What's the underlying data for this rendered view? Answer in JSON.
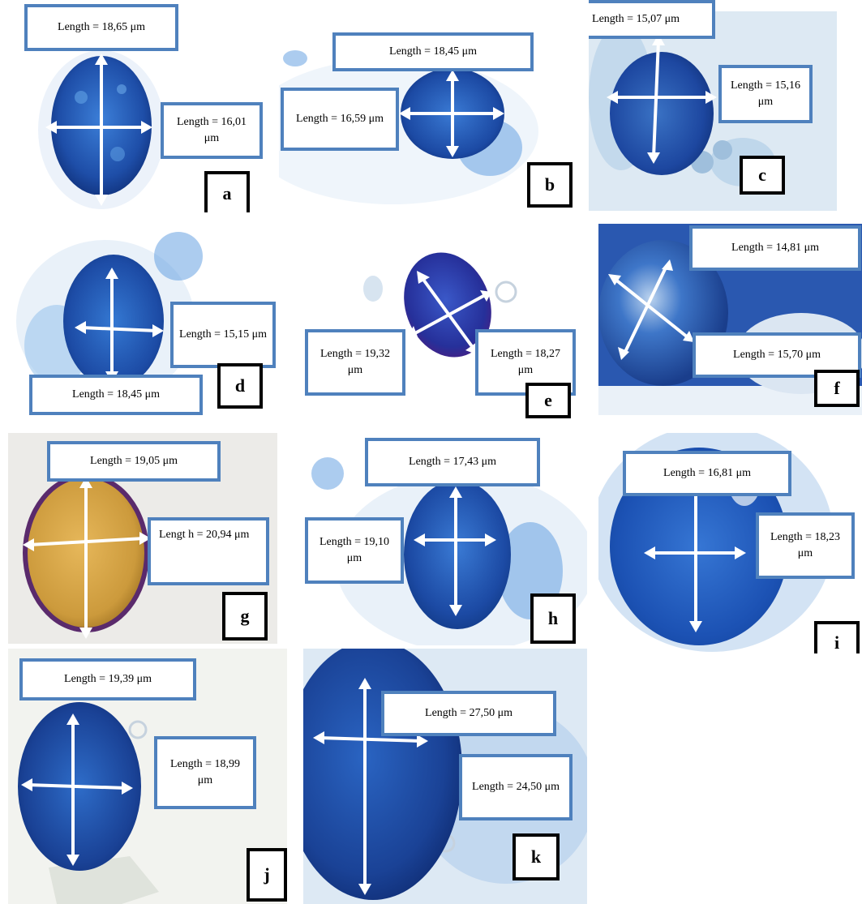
{
  "panels": [
    {
      "id": "a",
      "letter": "a",
      "measure_1": "Length = 18,65 μm",
      "measure_2": "Length = 16,01 μm"
    },
    {
      "id": "b",
      "letter": "b",
      "measure_1": "Length = 18,45 μm",
      "measure_2": "Length = 16,59 μm"
    },
    {
      "id": "c",
      "letter": "c",
      "measure_1": "Length = 15,07 μm",
      "measure_2": "Length = 15,16 μm"
    },
    {
      "id": "d",
      "letter": "d",
      "measure_1": "Length = 15,15 μm",
      "measure_2": "Length = 18,45 μm"
    },
    {
      "id": "e",
      "letter": "e",
      "measure_1": "Length = 19,32 μm",
      "measure_2": "Length = 18,27 μm"
    },
    {
      "id": "f",
      "letter": "f",
      "measure_1": "Length = 14,81 μm",
      "measure_2": "Length = 15,70 μm"
    },
    {
      "id": "g",
      "letter": "g",
      "measure_1": "Length = 19,05 μm",
      "measure_2": "Lengt h = 20,94 μm"
    },
    {
      "id": "h",
      "letter": "h",
      "measure_1": "Length = 17,43 μm",
      "measure_2": "Length = 19,10 μm"
    },
    {
      "id": "i",
      "letter": "i",
      "measure_1": "Length = 16,81 μm",
      "measure_2": "Length = 18,23 μm"
    },
    {
      "id": "j",
      "letter": "j",
      "measure_1": "Length = 19,39 μm",
      "measure_2": "Length = 18,99 μm"
    },
    {
      "id": "k",
      "letter": "k",
      "measure_1": "Length = 27,50 μm",
      "measure_2": "Length = 24,50 μm"
    }
  ],
  "colors": {
    "stain_dark": "#1a3f9e",
    "stain_mid": "#2f6fcf",
    "stain_light": "#9cc6ec",
    "label_border": "#4f81bd",
    "unstained_grain": "#d4a544",
    "arrow": "#ffffff"
  }
}
